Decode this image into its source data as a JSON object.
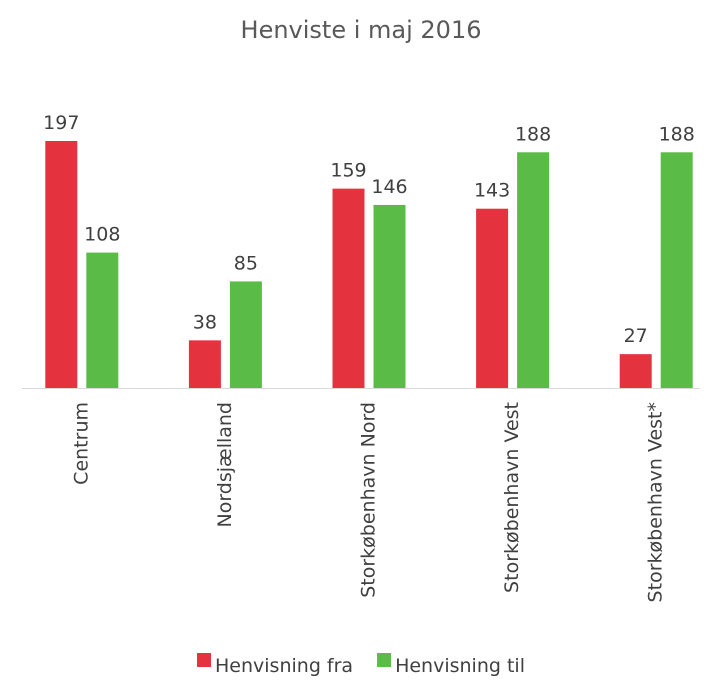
{
  "chart_data": {
    "type": "bar",
    "title": "Henviste i maj 2016",
    "categories": [
      "Centrum",
      "Nordsjælland",
      "Storkøbenhavn Nord",
      "Storkøbenhavn Vest",
      "Storkøbenhavn Vest*"
    ],
    "series": [
      {
        "name": "Henvisning fra",
        "color": "#e5323f",
        "values": [
          197,
          38,
          159,
          143,
          27
        ]
      },
      {
        "name": "Henvisning til",
        "color": "#5abb47",
        "values": [
          108,
          85,
          146,
          188,
          188
        ]
      }
    ],
    "legend": "bottom"
  }
}
